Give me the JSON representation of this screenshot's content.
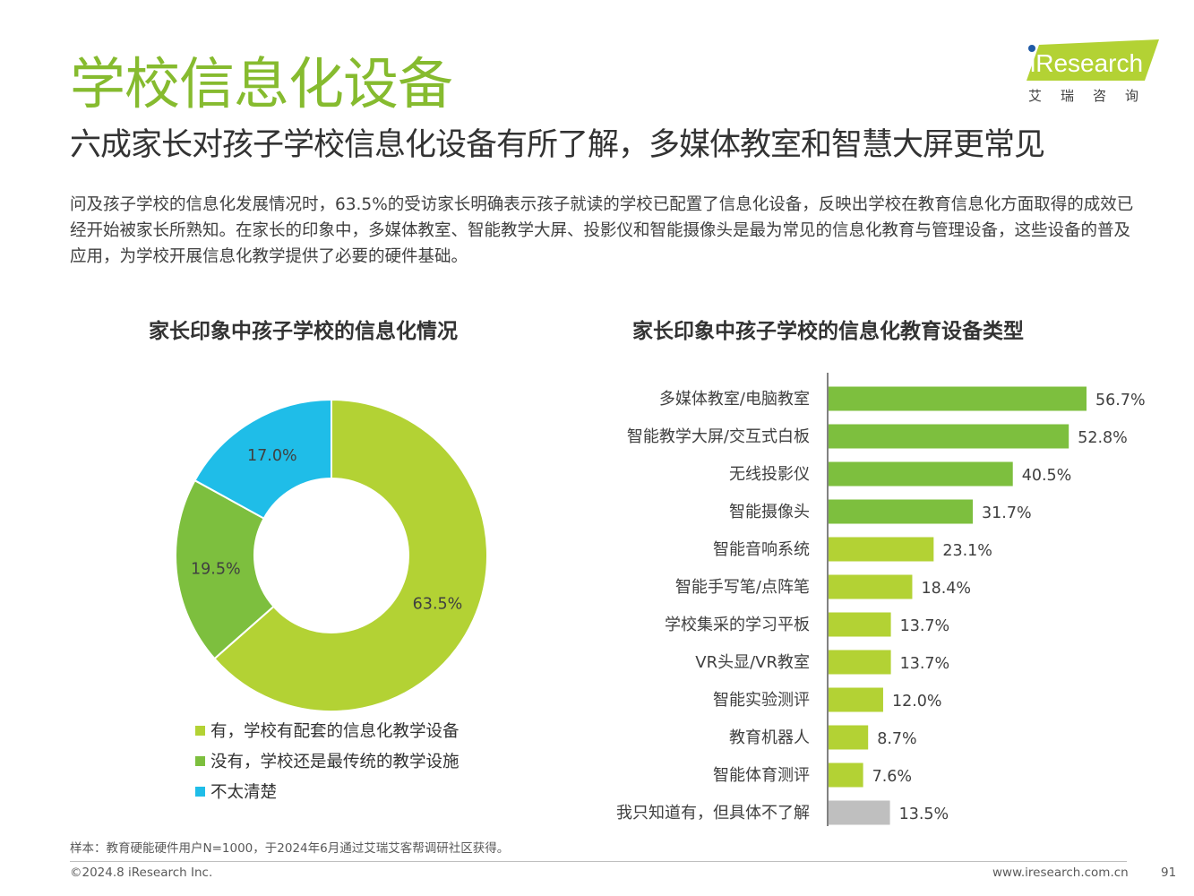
{
  "header": {
    "title": "学校信息化设备",
    "subtitle": "六成家长对孩子学校信息化设备有所了解，多媒体教室和智慧大屏更常见",
    "intro": "问及孩子学校的信息化发展情况时，63.5%的受访家长明确表示孩子就读的学校已配置了信息化设备，反映出学校在教育信息化方面取得的成效已经开始被家长所熟知。在家长的印象中，多媒体教室、智能教学大屏、投影仪和智能摄像头是最为常见的信息化教育与管理设备，这些设备的普及应用，为学校开展信息化教学提供了必要的硬件基础。"
  },
  "logo": {
    "text": "iResearch",
    "subtext": "艾瑞咨询",
    "color": "#b3d234"
  },
  "chart_data": [
    {
      "type": "pie",
      "style": "donut",
      "title": "家长印象中孩子学校的信息化情况",
      "categories": [
        "有，学校有配套的信息化教学设备",
        "没有，学校还是最传统的教学设施",
        "不太清楚"
      ],
      "values": [
        63.5,
        19.5,
        17.0
      ],
      "labels": [
        "63.5%",
        "19.5%",
        "17.0%"
      ],
      "colors": [
        "#b3d234",
        "#7dbf3e",
        "#1fbde8"
      ],
      "legend_position": "bottom"
    },
    {
      "type": "bar",
      "orientation": "horizontal",
      "title": "家长印象中孩子学校的信息化教育设备类型",
      "categories": [
        "多媒体教室/电脑教室",
        "智能教学大屏/交互式白板",
        "无线投影仪",
        "智能摄像头",
        "智能音响系统",
        "智能手写笔/点阵笔",
        "学校集采的学习平板",
        "VR头显/VR教室",
        "智能实验测评",
        "教育机器人",
        "智能体育测评",
        "我只知道有，但具体不了解"
      ],
      "values": [
        56.7,
        52.8,
        40.5,
        31.7,
        23.1,
        18.4,
        13.7,
        13.7,
        12.0,
        8.7,
        7.6,
        13.5
      ],
      "labels": [
        "56.7%",
        "52.8%",
        "40.5%",
        "31.7%",
        "23.1%",
        "18.4%",
        "13.7%",
        "13.7%",
        "12.0%",
        "8.7%",
        "7.6%",
        "13.5%"
      ],
      "colors": [
        "#7dbf3e",
        "#7dbf3e",
        "#7dbf3e",
        "#7dbf3e",
        "#b3d234",
        "#b3d234",
        "#b3d234",
        "#b3d234",
        "#b3d234",
        "#b3d234",
        "#b3d234",
        "#bfbfbf"
      ],
      "xlim": [
        0,
        60
      ]
    }
  ],
  "footer": {
    "note": "样本：教育硬能硬件用户N=1000，于2024年6月通过艾瑞艾客帮调研社区获得。",
    "copyright": "©2024.8 iResearch Inc.",
    "website": "www.iresearch.com.cn",
    "page": "91"
  }
}
